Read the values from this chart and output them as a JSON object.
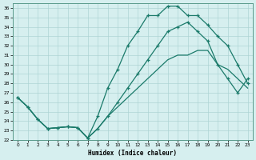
{
  "xlabel": "Humidex (Indice chaleur)",
  "bg_color": "#d6efef",
  "grid_color": "#aed4d4",
  "line_color": "#1a7a6a",
  "xlim": [
    -0.5,
    23.5
  ],
  "ylim": [
    22,
    36.5
  ],
  "xticks": [
    0,
    1,
    2,
    3,
    4,
    5,
    6,
    7,
    8,
    9,
    10,
    11,
    12,
    13,
    14,
    15,
    16,
    17,
    18,
    19,
    20,
    21,
    22,
    23
  ],
  "yticks": [
    22,
    23,
    24,
    25,
    26,
    27,
    28,
    29,
    30,
    31,
    32,
    33,
    34,
    35,
    36
  ],
  "line1_x": [
    0,
    1,
    2,
    3,
    4,
    5,
    6,
    7,
    8,
    9,
    10,
    11,
    12,
    13,
    14,
    15,
    16,
    17,
    18,
    19,
    20,
    21,
    22,
    23
  ],
  "line1_y": [
    26.5,
    25.5,
    24.2,
    23.2,
    23.3,
    23.4,
    23.3,
    22.2,
    24.5,
    27.5,
    29.5,
    32.0,
    33.5,
    35.2,
    35.2,
    36.2,
    36.2,
    35.2,
    35.2,
    34.2,
    33.0,
    32.0,
    30.0,
    28.0
  ],
  "line2_x": [
    0,
    1,
    2,
    3,
    4,
    5,
    6,
    7,
    8,
    9,
    10,
    11,
    12,
    13,
    14,
    15,
    16,
    17,
    18,
    19,
    20,
    21,
    22,
    23
  ],
  "line2_y": [
    26.5,
    25.5,
    24.2,
    23.2,
    23.3,
    23.4,
    23.3,
    22.2,
    23.2,
    24.5,
    26.0,
    27.5,
    29.0,
    30.5,
    32.0,
    33.5,
    34.0,
    34.5,
    33.5,
    32.5,
    30.0,
    28.5,
    27.0,
    28.5
  ],
  "line3_x": [
    0,
    1,
    2,
    3,
    4,
    5,
    6,
    7,
    8,
    9,
    10,
    11,
    12,
    13,
    14,
    15,
    16,
    17,
    18,
    19,
    20,
    21,
    22,
    23
  ],
  "line3_y": [
    26.5,
    25.5,
    24.2,
    23.2,
    23.3,
    23.4,
    23.3,
    22.2,
    23.2,
    24.5,
    25.5,
    26.5,
    27.5,
    28.5,
    29.5,
    30.5,
    31.0,
    31.0,
    31.5,
    31.5,
    30.0,
    29.5,
    28.5,
    27.5
  ]
}
